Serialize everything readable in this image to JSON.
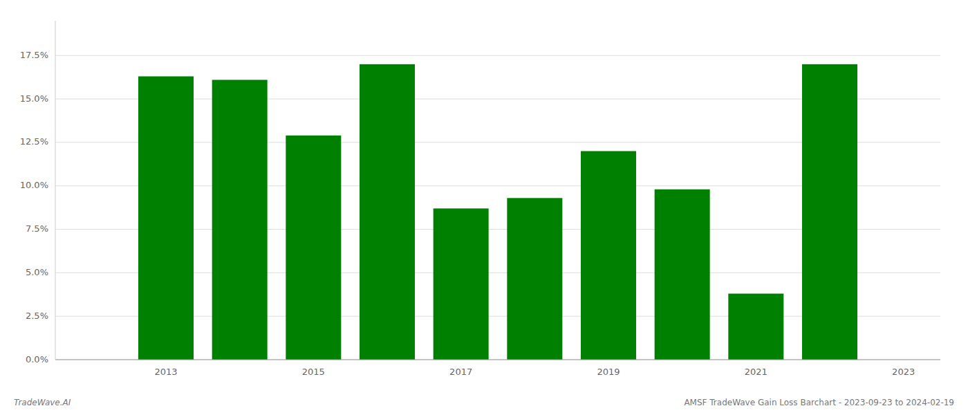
{
  "chart_data": {
    "type": "bar",
    "x": [
      2013,
      2014,
      2015,
      2016,
      2017,
      2018,
      2019,
      2020,
      2021,
      2022
    ],
    "values": [
      0.163,
      0.161,
      0.129,
      0.17,
      0.087,
      0.093,
      0.12,
      0.098,
      0.038,
      0.17
    ],
    "color": "#008000",
    "xlim": [
      2011.5,
      2023.5
    ],
    "xticks": [
      2013,
      2015,
      2017,
      2019,
      2021,
      2023
    ],
    "ylim": [
      0,
      0.195
    ],
    "yticks": [
      {
        "value": 0.0,
        "label": "0.0%"
      },
      {
        "value": 0.025,
        "label": "2.5%"
      },
      {
        "value": 0.05,
        "label": "5.0%"
      },
      {
        "value": 0.075,
        "label": "7.5%"
      },
      {
        "value": 0.1,
        "label": "10.0%"
      },
      {
        "value": 0.125,
        "label": "12.5%"
      },
      {
        "value": 0.15,
        "label": "15.0%"
      },
      {
        "value": 0.175,
        "label": "17.5%"
      }
    ],
    "grid": true,
    "annotations": [
      "TradeWave.AI",
      "AMSF TradeWave Gain Loss Barchart - 2023-09-23 to 2024-02-19"
    ]
  }
}
